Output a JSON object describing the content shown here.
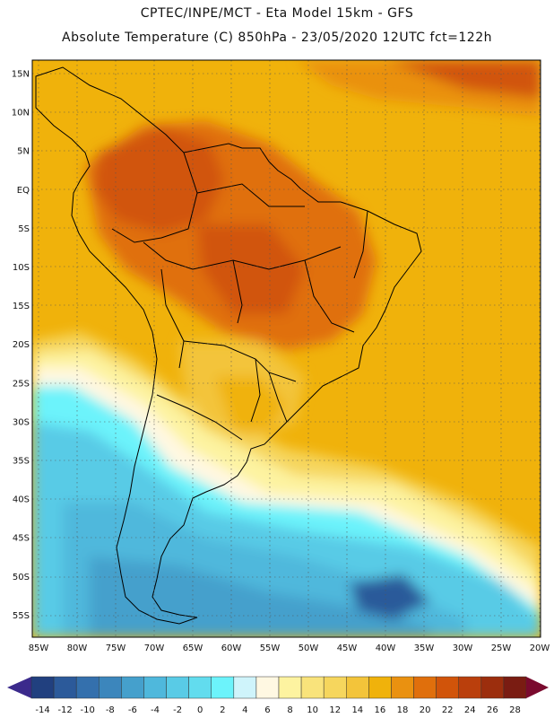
{
  "header": {
    "line1": "CPTEC/INPE/MCT -  Eta Model 15km - GFS",
    "line2": "Absolute Temperature (C) 850hPa - 23/05/2020 12UTC fct=122h"
  },
  "map": {
    "lat_labels": [
      "15N",
      "10N",
      "5N",
      "EQ",
      "5S",
      "10S",
      "15S",
      "20S",
      "25S",
      "30S",
      "35S",
      "40S",
      "45S",
      "50S",
      "55S"
    ],
    "lon_labels": [
      "85W",
      "80W",
      "75W",
      "70W",
      "65W",
      "60W",
      "55W",
      "50W",
      "45W",
      "40W",
      "35W",
      "30W",
      "25W",
      "20W"
    ],
    "grid": "dotted"
  },
  "colorbar": {
    "labels": [
      "-14",
      "-12",
      "-10",
      "-8",
      "-6",
      "-4",
      "-2",
      "0",
      "2",
      "4",
      "6",
      "8",
      "10",
      "12",
      "14",
      "16",
      "18",
      "20",
      "22",
      "24",
      "26",
      "28"
    ],
    "colors": [
      "#21407f",
      "#2c5a9a",
      "#3470ad",
      "#3c86bc",
      "#45a0cc",
      "#4fb8dc",
      "#59cbe6",
      "#62dcee",
      "#6cf3fb",
      "#cff4fb",
      "#fff8e2",
      "#fdf3a0",
      "#f9e37b",
      "#f6d65d",
      "#f3c43a",
      "#f0b20b",
      "#ea9110",
      "#e06f0c",
      "#d1540a",
      "#ba3f0c",
      "#9c2e0d",
      "#7a1c12"
    ],
    "low_arrow_color": "#3b2a8c",
    "high_arrow_color": "#7a0a2e"
  }
}
